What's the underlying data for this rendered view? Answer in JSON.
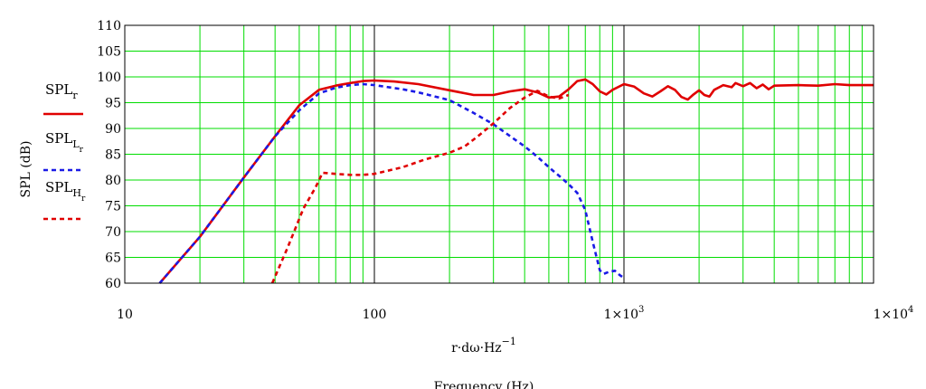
{
  "chart_data": {
    "type": "line",
    "ylabel": "SPL (dB)",
    "xlabel_expr": {
      "base": "r·dω·Hz",
      "sup": "−1"
    },
    "xlabel": "Frequency (Hz)",
    "x_scale": "log",
    "xlim": [
      10,
      10000
    ],
    "ylim": [
      60,
      110
    ],
    "grid": true,
    "x_ticks": [
      {
        "value": 10,
        "label": "10",
        "sup": ""
      },
      {
        "value": 100,
        "label": "100",
        "sup": ""
      },
      {
        "value": 1000,
        "label": "1×10",
        "sup": "3"
      },
      {
        "value": 10000,
        "label": "1×10",
        "sup": "4"
      }
    ],
    "y_ticks": [
      60,
      65,
      70,
      75,
      80,
      85,
      90,
      95,
      100,
      105,
      110
    ],
    "legend_placement": "left",
    "series": [
      {
        "name": "SPL",
        "sub": "r",
        "subsub": "",
        "color": "#e00000",
        "style": "solid",
        "points": [
          [
            13.8,
            60
          ],
          [
            20,
            69
          ],
          [
            30,
            80.5
          ],
          [
            40,
            88.5
          ],
          [
            50,
            94.5
          ],
          [
            60,
            97.5
          ],
          [
            70,
            98.3
          ],
          [
            80,
            98.8
          ],
          [
            90,
            99.2
          ],
          [
            100,
            99.3
          ],
          [
            120,
            99.1
          ],
          [
            150,
            98.6
          ],
          [
            200,
            97.4
          ],
          [
            250,
            96.5
          ],
          [
            300,
            96.5
          ],
          [
            350,
            97.2
          ],
          [
            400,
            97.6
          ],
          [
            450,
            97
          ],
          [
            500,
            96
          ],
          [
            550,
            96.2
          ],
          [
            600,
            97.6
          ],
          [
            650,
            99.2
          ],
          [
            700,
            99.5
          ],
          [
            750,
            98.6
          ],
          [
            800,
            97.2
          ],
          [
            850,
            96.6
          ],
          [
            900,
            97.5
          ],
          [
            1000,
            98.6
          ],
          [
            1100,
            98.1
          ],
          [
            1200,
            96.8
          ],
          [
            1300,
            96.2
          ],
          [
            1400,
            97.2
          ],
          [
            1500,
            98.2
          ],
          [
            1600,
            97.5
          ],
          [
            1700,
            96.1
          ],
          [
            1800,
            95.6
          ],
          [
            1900,
            96.6
          ],
          [
            2000,
            97.4
          ],
          [
            2100,
            96.5
          ],
          [
            2200,
            96.2
          ],
          [
            2300,
            97.5
          ],
          [
            2500,
            98.4
          ],
          [
            2700,
            98
          ],
          [
            2800,
            98.8
          ],
          [
            3000,
            98.2
          ],
          [
            3200,
            98.8
          ],
          [
            3400,
            97.8
          ],
          [
            3600,
            98.5
          ],
          [
            3800,
            97.6
          ],
          [
            4000,
            98.3
          ],
          [
            5000,
            98.4
          ],
          [
            6000,
            98.3
          ],
          [
            7000,
            98.6
          ],
          [
            8000,
            98.4
          ],
          [
            10000,
            98.4
          ]
        ]
      },
      {
        "name": "SPL",
        "sub": "L",
        "subsub": "r",
        "color": "#1a1ae6",
        "style": "dashed",
        "points": [
          [
            13.8,
            60
          ],
          [
            20,
            69
          ],
          [
            30,
            80.5
          ],
          [
            40,
            88.5
          ],
          [
            50,
            93.5
          ],
          [
            60,
            96.8
          ],
          [
            70,
            97.9
          ],
          [
            80,
            98.4
          ],
          [
            90,
            98.6
          ],
          [
            100,
            98.4
          ],
          [
            130,
            97.6
          ],
          [
            150,
            97
          ],
          [
            200,
            95.5
          ],
          [
            250,
            93
          ],
          [
            300,
            90.8
          ],
          [
            350,
            88.5
          ],
          [
            400,
            86.5
          ],
          [
            450,
            84.5
          ],
          [
            500,
            82.5
          ],
          [
            550,
            80.8
          ],
          [
            600,
            79.2
          ],
          [
            650,
            77.5
          ],
          [
            700,
            74.2
          ],
          [
            750,
            68
          ],
          [
            800,
            62.5
          ],
          [
            830,
            61.8
          ],
          [
            870,
            62.2
          ],
          [
            920,
            62.4
          ],
          [
            960,
            61.6
          ],
          [
            1000,
            61
          ]
        ]
      },
      {
        "name": "SPL",
        "sub": "H",
        "subsub": "r",
        "color": "#e00000",
        "style": "dashed",
        "points": [
          [
            39,
            60
          ],
          [
            45,
            67
          ],
          [
            52,
            74.5
          ],
          [
            58,
            78.5
          ],
          [
            62,
            81.4
          ],
          [
            70,
            81.2
          ],
          [
            80,
            81
          ],
          [
            90,
            81
          ],
          [
            100,
            81.2
          ],
          [
            130,
            82.5
          ],
          [
            160,
            84
          ],
          [
            200,
            85.3
          ],
          [
            230,
            86.5
          ],
          [
            260,
            88.5
          ],
          [
            300,
            91
          ],
          [
            350,
            94
          ],
          [
            400,
            96
          ],
          [
            450,
            97.3
          ],
          [
            500,
            96.2
          ],
          [
            550,
            95.8
          ],
          [
            600,
            96.5
          ]
        ]
      }
    ]
  }
}
